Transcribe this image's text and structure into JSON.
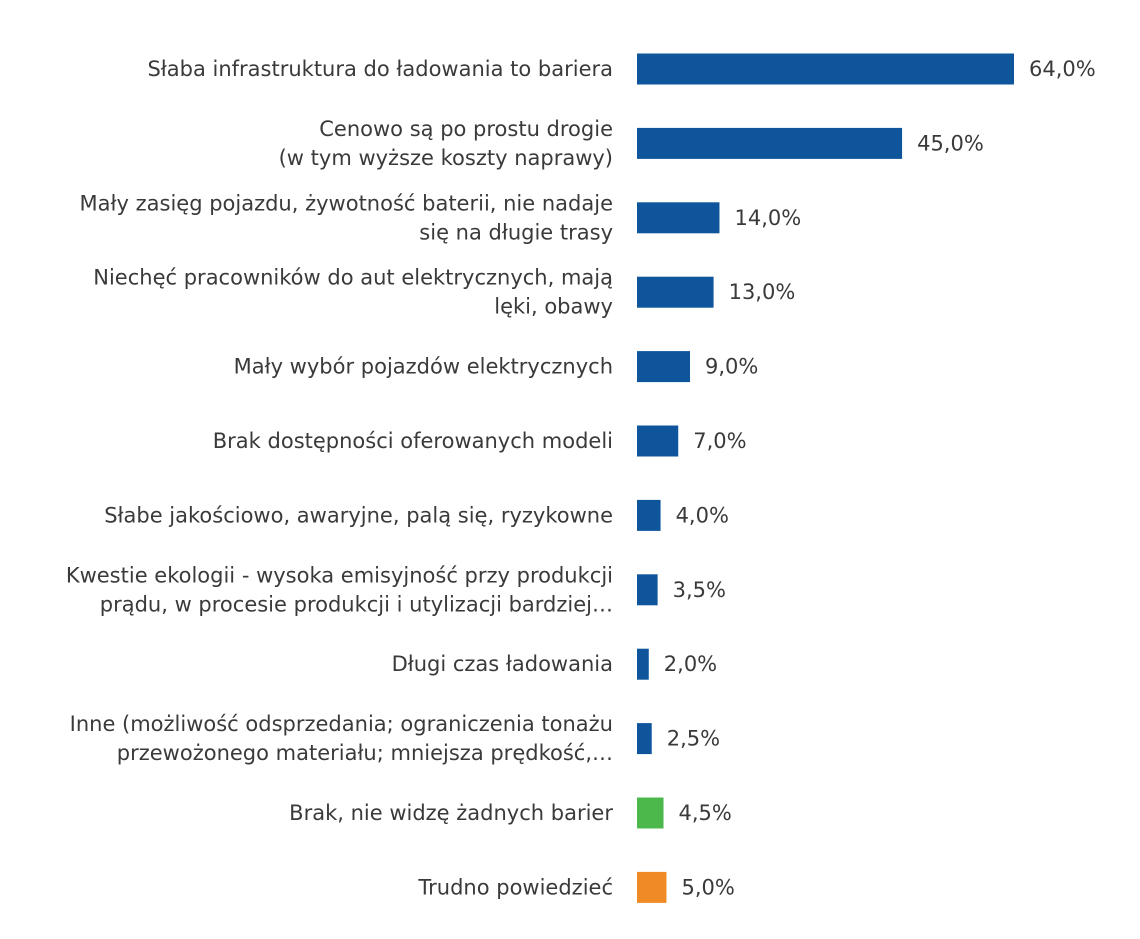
{
  "chart_data": {
    "type": "bar",
    "orientation": "horizontal",
    "title": "",
    "xlabel": "",
    "ylabel": "",
    "xlim": [
      0,
      64
    ],
    "grid": false,
    "legend": "none",
    "value_format": "percent_comma_one_decimal",
    "colors": {
      "default": "#0e559c",
      "none_barriers": "#4cb84c",
      "hard_to_say": "#f08a24"
    },
    "categories": [
      {
        "lines": [
          "Słaba infrastruktura do ładowania to bariera"
        ],
        "value": 64.0,
        "value_label": "64,0%",
        "color": "#0e559c"
      },
      {
        "lines": [
          "Cenowo są po prostu drogie",
          "(w tym wyższe koszty naprawy)"
        ],
        "value": 45.0,
        "value_label": "45,0%",
        "color": "#0e559c"
      },
      {
        "lines": [
          "Mały zasięg pojazdu, żywotność baterii, nie nadaje",
          "się na długie trasy"
        ],
        "value": 14.0,
        "value_label": "14,0%",
        "color": "#0e559c"
      },
      {
        "lines": [
          "Niechęć pracowników do aut elektrycznych, mają",
          "lęki, obawy"
        ],
        "value": 13.0,
        "value_label": "13,0%",
        "color": "#0e559c"
      },
      {
        "lines": [
          "Mały wybór pojazdów elektrycznych"
        ],
        "value": 9.0,
        "value_label": "9,0%",
        "color": "#0e559c"
      },
      {
        "lines": [
          "Brak dostępności oferowanych modeli"
        ],
        "value": 7.0,
        "value_label": "7,0%",
        "color": "#0e559c"
      },
      {
        "lines": [
          "Słabe jakościowo, awaryjne, palą się, ryzykowne"
        ],
        "value": 4.0,
        "value_label": "4,0%",
        "color": "#0e559c"
      },
      {
        "lines": [
          "Kwestie ekologii - wysoka emisyjność przy produkcji",
          "prądu, w procesie produkcji i utylizacji bardziej…"
        ],
        "value": 3.5,
        "value_label": "3,5%",
        "color": "#0e559c"
      },
      {
        "lines": [
          "Długi czas ładowania"
        ],
        "value": 2.0,
        "value_label": "2,0%",
        "color": "#0e559c"
      },
      {
        "lines": [
          "Inne (możliwość odsprzedania; ograniczenia tonażu",
          "przewożonego materiału; mniejsza prędkość,…"
        ],
        "value": 2.5,
        "value_label": "2,5%",
        "color": "#0e559c"
      },
      {
        "lines": [
          "Brak, nie widzę żadnych barier"
        ],
        "value": 4.5,
        "value_label": "4,5%",
        "color": "#4cb84c"
      },
      {
        "lines": [
          "Trudno powiedzieć"
        ],
        "value": 5.0,
        "value_label": "5,0%",
        "color": "#f08a24"
      }
    ]
  }
}
